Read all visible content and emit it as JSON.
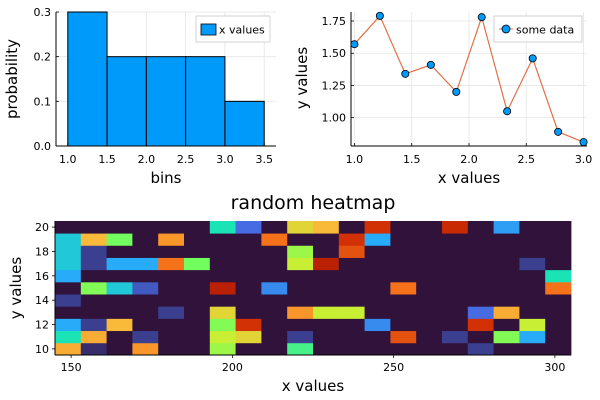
{
  "chart_data": [
    {
      "type": "bar",
      "xlabel": "bins",
      "ylabel": "probability",
      "legend": {
        "position": "top-right",
        "entries": [
          "x values"
        ]
      },
      "series": [
        {
          "name": "x values",
          "color": "#009AFA"
        }
      ],
      "bins": [
        [
          1.0,
          1.5
        ],
        [
          1.5,
          2.0
        ],
        [
          2.0,
          2.5
        ],
        [
          2.5,
          3.0
        ],
        [
          3.0,
          3.5
        ]
      ],
      "values": [
        0.3,
        0.2,
        0.2,
        0.2,
        0.1
      ],
      "xlim": [
        0.85,
        3.65
      ],
      "ylim": [
        0.0,
        0.3
      ],
      "xticks": [
        "1.0",
        "1.5",
        "2.0",
        "2.5",
        "3.0",
        "3.5"
      ],
      "yticks": [
        "0.0",
        "0.1",
        "0.2",
        "0.3"
      ],
      "grid": true
    },
    {
      "type": "line",
      "xlabel": "x values",
      "ylabel": "y values",
      "legend": {
        "position": "top-right",
        "entries": [
          "some data"
        ]
      },
      "series": [
        {
          "name": "some data",
          "marker_color": "#009AFA",
          "line_color": "#E26F46",
          "x": [
            1.0,
            1.222,
            1.444,
            1.667,
            1.889,
            2.111,
            2.333,
            2.556,
            2.778,
            3.0
          ],
          "y": [
            1.57,
            1.79,
            1.34,
            1.41,
            1.2,
            1.78,
            1.05,
            1.46,
            0.89,
            0.81
          ]
        }
      ],
      "xlim": [
        0.97,
        3.03
      ],
      "ylim": [
        0.78,
        1.82
      ],
      "xticks": [
        "1.0",
        "1.5",
        "2.0",
        "2.5",
        "3.0"
      ],
      "yticks": [
        "1.00",
        "1.25",
        "1.50",
        "1.75"
      ],
      "grid": true
    },
    {
      "type": "heatmap",
      "title": "random heatmap",
      "xlabel": "x values",
      "ylabel": "y values",
      "x_range": [
        145,
        305
      ],
      "y_range": [
        9.5,
        20.5
      ],
      "xticks": [
        "150",
        "200",
        "250",
        "300"
      ],
      "yticks": [
        "10",
        "12",
        "14",
        "16",
        "18",
        "20"
      ],
      "colormap": "turbo",
      "columns": 20,
      "rows": 11,
      "row_order": "bottom-to-top",
      "values": [
        [
          0.62,
          0.03,
          0.0,
          0.65,
          0.0,
          0.0,
          0.45,
          0.0,
          0.0,
          0.35,
          0.0,
          0.0,
          0.0,
          0.0,
          0.0,
          0.0,
          0.05,
          0.0,
          0.0,
          0.0
        ],
        [
          0.3,
          0.62,
          0.0,
          0.05,
          0.0,
          0.0,
          0.5,
          0.55,
          0.0,
          0.05,
          0.0,
          0.0,
          0.0,
          0.75,
          0.0,
          0.05,
          0.0,
          0.42,
          0.2,
          0.0
        ],
        [
          0.2,
          0.05,
          0.6,
          0.0,
          0.0,
          0.0,
          0.42,
          0.8,
          0.0,
          0.0,
          0.0,
          0.0,
          0.15,
          0.0,
          0.0,
          0.0,
          0.8,
          0.0,
          0.5,
          0.0
        ],
        [
          0.0,
          0.0,
          0.0,
          0.0,
          0.05,
          0.0,
          0.55,
          0.0,
          0.0,
          0.65,
          0.5,
          0.5,
          0.0,
          0.0,
          0.0,
          0.0,
          0.1,
          0.62,
          0.0,
          0.0
        ],
        [
          0.05,
          0.0,
          0.0,
          0.0,
          0.0,
          0.0,
          0.0,
          0.0,
          0.0,
          0.0,
          0.0,
          0.0,
          0.0,
          0.0,
          0.0,
          0.0,
          0.0,
          0.0,
          0.0,
          0.0
        ],
        [
          0.0,
          0.42,
          0.25,
          0.08,
          0.0,
          0.0,
          0.85,
          0.0,
          0.15,
          0.0,
          0.0,
          0.0,
          0.0,
          0.7,
          0.0,
          0.0,
          0.0,
          0.0,
          0.0,
          0.7
        ],
        [
          0.2,
          0.0,
          0.0,
          0.0,
          0.0,
          0.0,
          0.0,
          0.0,
          0.0,
          0.0,
          0.0,
          0.0,
          0.0,
          0.0,
          0.0,
          0.0,
          0.0,
          0.0,
          0.0,
          0.3
        ],
        [
          0.25,
          0.05,
          0.2,
          0.2,
          0.7,
          0.4,
          0.0,
          0.0,
          0.0,
          0.5,
          0.85,
          0.0,
          0.0,
          0.0,
          0.0,
          0.0,
          0.0,
          0.0,
          0.05,
          0.0
        ],
        [
          0.25,
          0.05,
          0.0,
          0.0,
          0.0,
          0.0,
          0.0,
          0.0,
          0.0,
          0.45,
          0.0,
          0.75,
          0.0,
          0.0,
          0.0,
          0.0,
          0.0,
          0.0,
          0.0,
          0.0
        ],
        [
          0.25,
          0.6,
          0.4,
          0.0,
          0.65,
          0.0,
          0.0,
          0.0,
          0.7,
          0.0,
          0.0,
          0.8,
          0.2,
          0.0,
          0.0,
          0.0,
          0.0,
          0.0,
          0.0,
          0.0
        ],
        [
          0.0,
          0.0,
          0.0,
          0.0,
          0.0,
          0.0,
          0.3,
          0.1,
          0.0,
          0.55,
          0.6,
          0.0,
          0.8,
          0.0,
          0.0,
          0.82,
          0.0,
          0.18,
          0.0,
          0.0
        ]
      ]
    }
  ]
}
